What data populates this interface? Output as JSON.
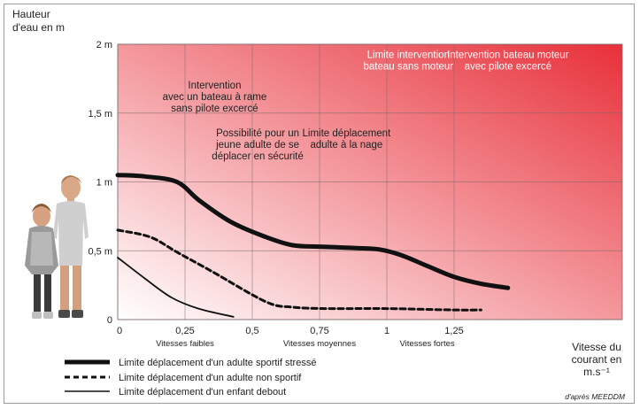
{
  "chart_data": {
    "type": "line",
    "ylabel_lines": [
      "Hauteur",
      "d'eau en m"
    ],
    "xlabel_lines": [
      "Vitesse du",
      "courant en",
      "m.s⁻¹"
    ],
    "xlim": [
      0,
      1.5
    ],
    "ylim": [
      0,
      2
    ],
    "x_ticks": [
      {
        "value": 0,
        "label": "0"
      },
      {
        "value": 0.25,
        "label": "0,25"
      },
      {
        "value": 0.5,
        "label": "0,5"
      },
      {
        "value": 0.75,
        "label": "0,75"
      },
      {
        "value": 1,
        "label": "1"
      },
      {
        "value": 1.25,
        "label": "1,25"
      }
    ],
    "y_ticks": [
      {
        "value": 0,
        "label": "0"
      },
      {
        "value": 0.5,
        "label": "0,5 m"
      },
      {
        "value": 1,
        "label": "1 m"
      },
      {
        "value": 1.5,
        "label": "1,5 m"
      },
      {
        "value": 2,
        "label": "2 m"
      }
    ],
    "grid": true,
    "background_gradient": {
      "from": "#ffffff",
      "to": "#e8303a"
    },
    "zones": [
      {
        "label": "Vitesses faibles",
        "x": 0.25
      },
      {
        "label": "Vitesses moyennes",
        "x": 0.75
      },
      {
        "label": "Vitesses fortes",
        "x": 1.15
      }
    ],
    "series": [
      {
        "name": "Limite déplacement d'un adulte sportif stressé",
        "style": "thick",
        "x": [
          0,
          0.1,
          0.22,
          0.3,
          0.42,
          0.55,
          0.65,
          0.75,
          0.88,
          0.97,
          1.05,
          1.15,
          1.25,
          1.35,
          1.45
        ],
        "y": [
          1.05,
          1.04,
          1.0,
          0.87,
          0.71,
          0.6,
          0.54,
          0.53,
          0.52,
          0.51,
          0.47,
          0.39,
          0.31,
          0.26,
          0.23
        ]
      },
      {
        "name": "Limite déplacement d'un adulte non sportif",
        "style": "dashed",
        "x": [
          0,
          0.12,
          0.22,
          0.35,
          0.55,
          0.65,
          0.78,
          1.0,
          1.25,
          1.35
        ],
        "y": [
          0.65,
          0.6,
          0.49,
          0.35,
          0.13,
          0.09,
          0.08,
          0.08,
          0.07,
          0.07
        ]
      },
      {
        "name": "Limite déplacement d'un enfant debout",
        "style": "thin",
        "x": [
          0,
          0.1,
          0.2,
          0.3,
          0.43
        ],
        "y": [
          0.45,
          0.3,
          0.16,
          0.08,
          0.02
        ]
      }
    ],
    "annotations": [
      {
        "lines": [
          "Intervention",
          "avec un bateau à rame",
          "sans pilote excercé"
        ],
        "x": 0.36,
        "y": 1.68,
        "color": "dark"
      },
      {
        "lines": [
          "Possibilité pour un",
          "jeune adulte de se",
          "déplacer en sécurité"
        ],
        "x": 0.52,
        "y": 1.33,
        "color": "dark"
      },
      {
        "lines": [
          "Limite déplacement",
          "adulte à la nage"
        ],
        "x": 0.85,
        "y": 1.33,
        "color": "dark"
      },
      {
        "lines": [
          "Limite intervention",
          "bateau sans moteur"
        ],
        "x": 1.08,
        "y": 1.9,
        "color": "white"
      },
      {
        "lines": [
          "Intervention bateau moteur",
          "avec pilote excercé"
        ],
        "x": 1.45,
        "y": 1.9,
        "color": "white"
      }
    ],
    "source": "d'après MEEDDM"
  }
}
